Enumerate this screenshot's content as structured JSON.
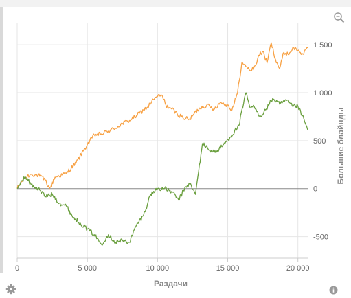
{
  "colors": {
    "series_1": "#f7a144",
    "series_2": "#6a9f3e",
    "grid": "#e6e6e6",
    "zero_line": "#888888",
    "axis_text": "#666666",
    "icon": "#999999"
  },
  "icons": {
    "zoom": "zoom-icon",
    "settings": "gear-icon",
    "info": "info-icon"
  },
  "chart_data": {
    "type": "line",
    "xlabel": "Раздачи",
    "ylabel": "Большие блайнды",
    "xlim": [
      0,
      20700
    ],
    "ylim": [
      -725,
      1730
    ],
    "x_ticks": [
      0,
      5000,
      10000,
      15000,
      20000
    ],
    "x_tick_labels": [
      "0",
      "5 000",
      "10 000",
      "15 000",
      "20 000"
    ],
    "y_ticks": [
      -500,
      0,
      500,
      1000,
      1500
    ],
    "y_tick_labels": [
      "-500",
      "0",
      "500",
      "1 000",
      "1 500"
    ],
    "grid": true,
    "legend": "none",
    "series": [
      {
        "color": "#f7a144",
        "x": [
          0,
          500,
          1000,
          1500,
          2000,
          2300,
          2700,
          3500,
          4200,
          4700,
          5000,
          5500,
          6000,
          6500,
          7000,
          7500,
          8000,
          8500,
          9000,
          9300,
          9700,
          10000,
          10300,
          10600,
          11000,
          11400,
          11800,
          12300,
          12600,
          13000,
          13500,
          14000,
          14500,
          15000,
          15300,
          15700,
          16000,
          16300,
          16700,
          17000,
          17200,
          17500,
          17800,
          18100,
          18400,
          18700,
          19000,
          19300,
          19700,
          20000,
          20400,
          20700
        ],
        "y": [
          0,
          110,
          150,
          140,
          90,
          0,
          120,
          160,
          270,
          390,
          460,
          560,
          570,
          600,
          630,
          680,
          710,
          760,
          820,
          850,
          930,
          960,
          975,
          870,
          830,
          780,
          740,
          720,
          780,
          840,
          870,
          830,
          900,
          870,
          820,
          1000,
          1310,
          1270,
          1230,
          1290,
          1390,
          1430,
          1310,
          1520,
          1350,
          1250,
          1420,
          1400,
          1470,
          1440,
          1400,
          1470
        ]
      },
      {
        "color": "#6a9f3e",
        "x": [
          0,
          300,
          600,
          1000,
          1500,
          2000,
          2500,
          3000,
          3500,
          4000,
          4500,
          5000,
          5500,
          6000,
          6500,
          7000,
          7500,
          8000,
          8500,
          9000,
          9500,
          10000,
          10500,
          11000,
          11500,
          12000,
          12300,
          12700,
          13200,
          13700,
          14200,
          14700,
          15200,
          15800,
          16300,
          16600,
          16900,
          17300,
          17700,
          18200,
          18700,
          19200,
          19600,
          20000,
          20300,
          20500,
          20700
        ],
        "y": [
          0,
          80,
          120,
          40,
          0,
          -80,
          -60,
          -150,
          -180,
          -300,
          -360,
          -420,
          -480,
          -580,
          -480,
          -560,
          -540,
          -560,
          -380,
          -280,
          -60,
          0,
          0,
          -30,
          -120,
          20,
          50,
          -60,
          470,
          400,
          380,
          460,
          540,
          660,
          1000,
          840,
          850,
          750,
          820,
          940,
          880,
          920,
          860,
          860,
          760,
          690,
          610
        ]
      }
    ]
  }
}
